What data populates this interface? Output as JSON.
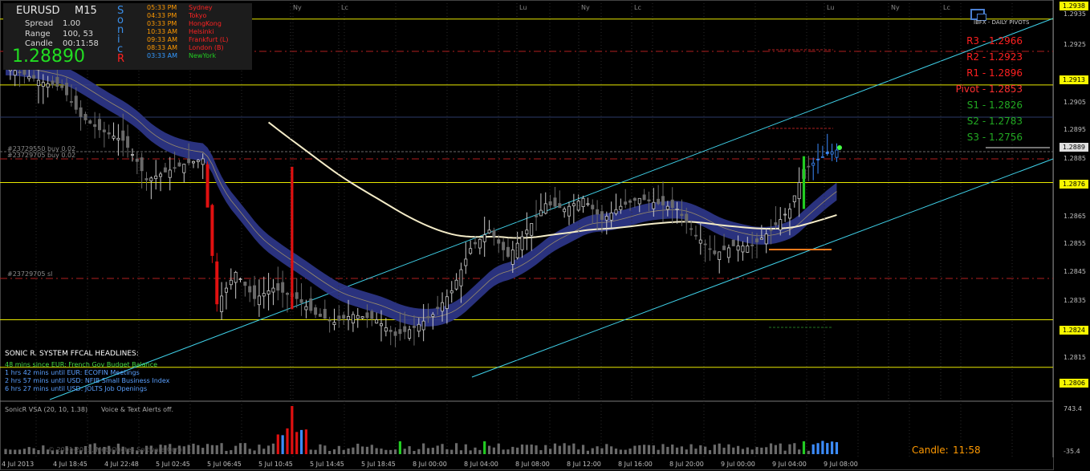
{
  "header": {
    "symbol": "EURUSD",
    "timeframe": "M15",
    "spread_label": "Spread",
    "spread_value": "1.00",
    "range_label": "Range",
    "range_value": "100, 53",
    "candle_label": "Candle",
    "candle_value": "00:11:58",
    "price": "1.28890",
    "sonic_letters": [
      "S",
      "o",
      "n",
      "i",
      "c",
      "R"
    ]
  },
  "sessions": [
    {
      "time": "05:33 PM",
      "name": "Sydney",
      "time_color": "#ff9900",
      "name_color": "#ff2222"
    },
    {
      "time": "04:33 PM",
      "name": "Tokyo",
      "time_color": "#ff9900",
      "name_color": "#ff2222"
    },
    {
      "time": "03:33 PM",
      "name": "HongKong",
      "time_color": "#ff9900",
      "name_color": "#ff2222"
    },
    {
      "time": "10:33 AM",
      "name": "Helsinki",
      "time_color": "#ff9900",
      "name_color": "#ff2222"
    },
    {
      "time": "09:33 AM",
      "name": "Frankfurt  (L)",
      "time_color": "#ff9900",
      "name_color": "#ff2222"
    },
    {
      "time": "08:33 AM",
      "name": "London  (B)",
      "time_color": "#ff9900",
      "name_color": "#ff2222"
    },
    {
      "time": "03:33 AM",
      "name": "NewYork",
      "time_color": "#3399ff",
      "name_color": "#22cc22"
    }
  ],
  "pivots": {
    "logo_text": "IBFX - DAILY PIVOTS",
    "levels": [
      {
        "label": "R3 - 1.2966",
        "color": "#ff2020"
      },
      {
        "label": "R2 - 1.2923",
        "color": "#ff2020"
      },
      {
        "label": "R1 - 1.2896",
        "color": "#ff2020"
      },
      {
        "label": "Pivot - 1.2853",
        "color": "#ff3030"
      },
      {
        "label": "S1 - 1.2826",
        "color": "#22aa22"
      },
      {
        "label": "S2 - 1.2783",
        "color": "#22aa22"
      },
      {
        "label": "S3 - 1.2756",
        "color": "#22aa22"
      }
    ]
  },
  "news": {
    "title": "SONIC R. SYSTEM  FFCAL HEADLINES:",
    "items": [
      {
        "text": "48 mins since EUR: French Gov Budget Balance",
        "color": "#44dd44"
      },
      {
        "text": "1 hrs 42 mins until EUR: ECOFIN Meetings",
        "color": "#5aa0ff"
      },
      {
        "text": "2 hrs 57 mins until USD: NFIB Small Business Index",
        "color": "#5aa0ff"
      },
      {
        "text": "6 hrs 27 mins until USD: JOLTS Job Openings",
        "color": "#5aa0ff"
      }
    ]
  },
  "orders": {
    "buy1": "#23729550 buy 0.02",
    "buy2": "#23729705 buy 0.02",
    "sl": "#23729705 sl"
  },
  "session_markers": [
    "Ny",
    "Lc",
    "Lu",
    "Ny",
    "Lc",
    "Lu",
    "Ny",
    "Lc"
  ],
  "price_axis": {
    "ticks": [
      "1.2935",
      "1.2925",
      "1.2905",
      "1.2895",
      "1.2885",
      "1.2865",
      "1.2855",
      "1.2845",
      "1.2835",
      "1.2815"
    ],
    "highlighted": [
      {
        "label": "1.2938",
        "style": "yellow"
      },
      {
        "label": "1.2913",
        "style": "yellow"
      },
      {
        "label": "1.2889",
        "style": "white"
      },
      {
        "label": "1.2876",
        "style": "yellow"
      },
      {
        "label": "1.2824",
        "style": "yellow"
      },
      {
        "label": "1.2806",
        "style": "yellow"
      }
    ]
  },
  "time_axis": [
    "4 Jul 2013",
    "4 Jul 18:45",
    "4 Jul 22:48",
    "5 Jul 02:45",
    "5 Jul 06:45",
    "5 Jul 10:45",
    "5 Jul 14:45",
    "5 Jul 18:45",
    "8 Jul 00:00",
    "8 Jul 04:00",
    "8 Jul 08:00",
    "8 Jul 12:00",
    "8 Jul 16:00",
    "8 Jul 20:00",
    "9 Jul 00:00",
    "9 Jul 04:00",
    "9 Jul 08:00"
  ],
  "indicator": {
    "name": "SonicR VSA  (20, 10, 1.38)",
    "alert": "Voice & Text Alerts off.",
    "axis_top": "743.4",
    "axis_bottom": "-35.4",
    "watermark": "© 2001-2013, MetaQuotes Software Corp."
  },
  "candle_timer": {
    "label": "Candle:",
    "value": "11:58"
  },
  "chart_data": {
    "type": "candlestick",
    "symbol": "EURUSD",
    "timeframe": "M15",
    "y_range": [
      1.2798,
      1.2944
    ],
    "horizontal_levels": [
      1.2938,
      1.2913,
      1.2876,
      1.2824,
      1.2806
    ],
    "pivot_levels": {
      "R3": 1.2966,
      "R2": 1.2923,
      "R1": 1.2896,
      "Pivot": 1.2853,
      "S1": 1.2826,
      "S2": 1.2783,
      "S3": 1.2756
    },
    "current_price": 1.2889,
    "price_path": [
      [
        0,
        1.292
      ],
      [
        4,
        1.2917
      ],
      [
        8,
        1.2914
      ],
      [
        12,
        1.2912
      ],
      [
        16,
        1.2901
      ],
      [
        20,
        1.2896
      ],
      [
        25,
        1.2892
      ],
      [
        28,
        1.2884
      ],
      [
        30,
        1.2877
      ],
      [
        34,
        1.288
      ],
      [
        38,
        1.2883
      ],
      [
        42,
        1.2885
      ],
      [
        45,
        1.283
      ],
      [
        49,
        1.2842
      ],
      [
        53,
        1.2832
      ],
      [
        57,
        1.2836
      ],
      [
        62,
        1.2832
      ],
      [
        66,
        1.2826
      ],
      [
        70,
        1.2823
      ],
      [
        74,
        1.2826
      ],
      [
        79,
        1.2824
      ],
      [
        83,
        1.2818
      ],
      [
        87,
        1.2821
      ],
      [
        91,
        1.2826
      ],
      [
        95,
        1.2835
      ],
      [
        99,
        1.2851
      ],
      [
        103,
        1.2858
      ],
      [
        107,
        1.2848
      ],
      [
        111,
        1.2858
      ],
      [
        115,
        1.2868
      ],
      [
        119,
        1.2866
      ],
      [
        123,
        1.287
      ],
      [
        127,
        1.2862
      ],
      [
        131,
        1.2867
      ],
      [
        135,
        1.287
      ],
      [
        139,
        1.2868
      ],
      [
        143,
        1.2866
      ],
      [
        147,
        1.2856
      ],
      [
        151,
        1.2849
      ],
      [
        155,
        1.2852
      ],
      [
        159,
        1.2852
      ],
      [
        163,
        1.2858
      ],
      [
        167,
        1.2866
      ],
      [
        170,
        1.2881
      ],
      [
        175,
        1.2887
      ],
      [
        178,
        1.2889
      ]
    ]
  }
}
